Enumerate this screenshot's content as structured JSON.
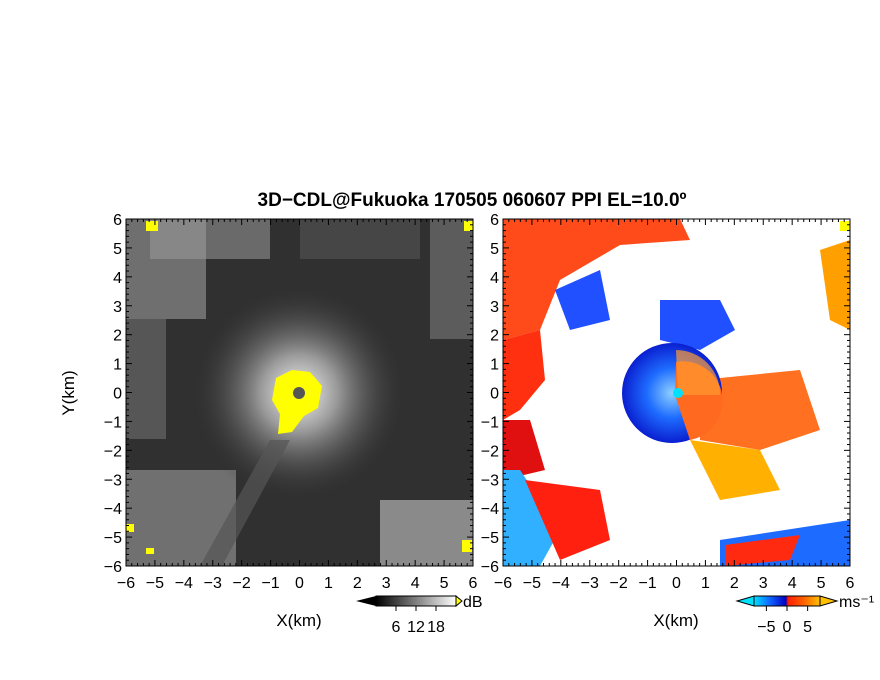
{
  "title": "3D−CDL@Fukuoka 170505 060607 PPI EL=10.0º",
  "chart_data": [
    {
      "type": "heatmap",
      "panel": "left",
      "quantity_unit": "dB",
      "xlabel": "X(km)",
      "ylabel": "Y(km)",
      "xlim": [
        -6,
        6
      ],
      "ylim": [
        -6,
        6
      ],
      "x_ticks": [
        "−6",
        "−5",
        "−4",
        "−3",
        "−2",
        "−1",
        "0",
        "1",
        "2",
        "3",
        "4",
        "5",
        "6"
      ],
      "y_ticks": [
        "6",
        "5",
        "4",
        "3",
        "2",
        "1",
        "0",
        "−1",
        "−2",
        "−3",
        "−4",
        "−5",
        "−6"
      ],
      "colorbar": {
        "label": "dB",
        "range": [
          0,
          24
        ],
        "ticks": [
          "6",
          "12",
          "18"
        ],
        "colors": [
          "#000000",
          "#ffffff"
        ],
        "saturated_color": "#ffff00"
      },
      "radar_center": [
        0,
        0
      ],
      "colormap": "gray"
    },
    {
      "type": "heatmap",
      "panel": "right",
      "quantity_unit": "ms⁻¹",
      "xlabel": "X(km)",
      "xlim": [
        -6,
        6
      ],
      "ylim": [
        -6,
        6
      ],
      "x_ticks": [
        "−6",
        "−5",
        "−4",
        "−3",
        "−2",
        "−1",
        "0",
        "1",
        "2",
        "3",
        "4",
        "5",
        "6"
      ],
      "y_ticks": [
        "6",
        "5",
        "4",
        "3",
        "2",
        "1",
        "0",
        "−1",
        "−2",
        "−3",
        "−4",
        "−5",
        "−6"
      ],
      "colorbar": {
        "label": "ms⁻¹",
        "range": [
          -8,
          8
        ],
        "ticks": [
          "−5",
          "0",
          "5"
        ],
        "colors": [
          "#00e0ff",
          "#1060ff",
          "#0000c0",
          "#ff2000",
          "#ff6000",
          "#ffc000"
        ]
      },
      "radar_center": [
        0,
        0
      ],
      "colormap": "doppler velocity (blue = toward, red = away)"
    }
  ]
}
